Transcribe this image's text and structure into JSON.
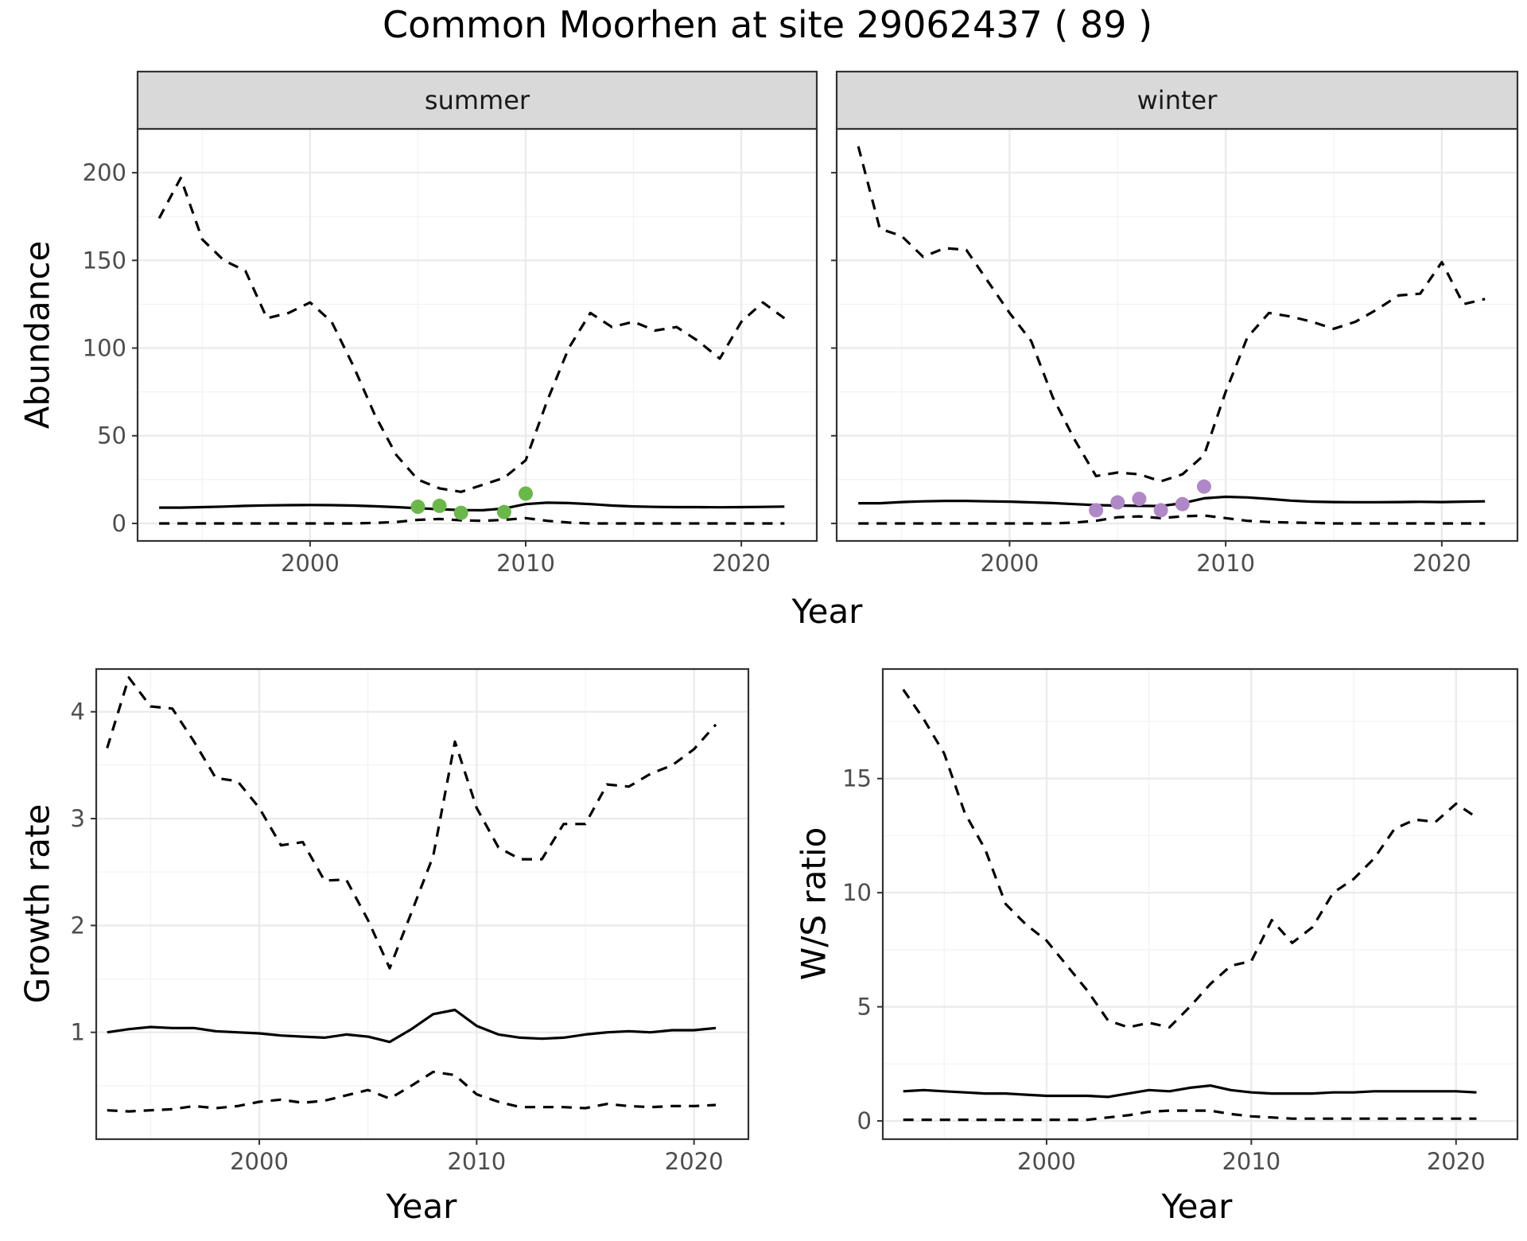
{
  "figure": {
    "title": "Common Moorhen at site 29062437 ( 89 )"
  },
  "chart_data": [
    {
      "type": "line",
      "facet": "summer",
      "xlabel": "Year",
      "ylabel": "Abundance",
      "xlim": [
        1992,
        2023.5
      ],
      "ylim": [
        -10,
        225
      ],
      "xticks": [
        2000,
        2010,
        2020
      ],
      "yticks": [
        0,
        50,
        100,
        150,
        200
      ],
      "grid": true,
      "x": [
        1993,
        1994,
        1995,
        1996,
        1997,
        1998,
        1999,
        2000,
        2001,
        2002,
        2003,
        2004,
        2005,
        2006,
        2007,
        2008,
        2009,
        2010,
        2011,
        2012,
        2013,
        2014,
        2015,
        2016,
        2017,
        2018,
        2019,
        2020,
        2021,
        2022
      ],
      "series": [
        {
          "role": "upper",
          "style": "dashed",
          "values": [
            174,
            197,
            162,
            150,
            144,
            117,
            120,
            126,
            115,
            90,
            62,
            39,
            25,
            20,
            18,
            22,
            26,
            36,
            70,
            100,
            120,
            112,
            115,
            110,
            112,
            104,
            94,
            115,
            126,
            117
          ]
        },
        {
          "role": "estimate",
          "style": "solid",
          "values": [
            9,
            9,
            9.3,
            9.6,
            10,
            10.3,
            10.4,
            10.5,
            10.4,
            10.2,
            9.8,
            9.3,
            8.7,
            8.1,
            7.6,
            7.5,
            8.5,
            11,
            11.8,
            11.6,
            11,
            10.2,
            9.7,
            9.4,
            9.3,
            9.3,
            9.2,
            9.3,
            9.4,
            9.6
          ]
        },
        {
          "role": "lower",
          "style": "dashed",
          "values": [
            0,
            0,
            0,
            0,
            0,
            0,
            0,
            0,
            0,
            0,
            0.3,
            0.8,
            2,
            2.5,
            1.8,
            1.5,
            2,
            3,
            1.5,
            0.5,
            0,
            0,
            0,
            0,
            0,
            0,
            0,
            0,
            0,
            0
          ]
        }
      ],
      "points": {
        "color": "#6ab84a",
        "x": [
          2005,
          2006,
          2007,
          2009,
          2010
        ],
        "y": [
          9.5,
          10,
          6,
          6.5,
          17
        ]
      }
    },
    {
      "type": "line",
      "facet": "winter",
      "xlabel": "Year",
      "ylabel": "",
      "xlim": [
        1992,
        2023.5
      ],
      "ylim": [
        -10,
        225
      ],
      "xticks": [
        2000,
        2010,
        2020
      ],
      "yticks": [
        0,
        50,
        100,
        150,
        200
      ],
      "grid": true,
      "x": [
        1993,
        1994,
        1995,
        1996,
        1997,
        1998,
        1999,
        2000,
        2001,
        2002,
        2003,
        2004,
        2005,
        2006,
        2007,
        2008,
        2009,
        2010,
        2011,
        2012,
        2013,
        2014,
        2015,
        2016,
        2017,
        2018,
        2019,
        2020,
        2021,
        2022
      ],
      "series": [
        {
          "role": "upper",
          "style": "dashed",
          "values": [
            215,
            168,
            164,
            152,
            157,
            156,
            138,
            120,
            104,
            72,
            48,
            27,
            29,
            28,
            24,
            28,
            39,
            75,
            106,
            120,
            118,
            115,
            111,
            115,
            122,
            130,
            131,
            149,
            125,
            128
          ]
        },
        {
          "role": "estimate",
          "style": "solid",
          "values": [
            11.5,
            11.5,
            12.2,
            12.6,
            12.8,
            12.8,
            12.6,
            12.4,
            12,
            11.6,
            11,
            10.4,
            10.2,
            10,
            9.9,
            11.5,
            14.3,
            15.2,
            14.8,
            14,
            13,
            12.4,
            12.2,
            12.1,
            12.1,
            12.2,
            12.3,
            12.2,
            12.4,
            12.6
          ]
        },
        {
          "role": "lower",
          "style": "dashed",
          "values": [
            0,
            0,
            0,
            0,
            0,
            0,
            0,
            0,
            0,
            0,
            0.5,
            1.5,
            3.5,
            4,
            3,
            4,
            4.5,
            3,
            1.5,
            0.8,
            0.5,
            0.3,
            0,
            0,
            0,
            0,
            0,
            0,
            0,
            0
          ]
        }
      ],
      "points": {
        "color": "#b088c8",
        "x": [
          2004,
          2005,
          2006,
          2007,
          2008,
          2009
        ],
        "y": [
          7.5,
          12,
          14,
          7.5,
          11,
          21
        ]
      }
    },
    {
      "type": "line",
      "xlabel": "Year",
      "ylabel": "Growth rate",
      "xlim": [
        1992.5,
        2022.5
      ],
      "ylim": [
        0.0,
        4.4
      ],
      "xticks": [
        2000,
        2010,
        2020
      ],
      "yticks": [
        1,
        2,
        3,
        4
      ],
      "grid": true,
      "x": [
        1993,
        1994,
        1995,
        1996,
        1997,
        1998,
        1999,
        2000,
        2001,
        2002,
        2003,
        2004,
        2005,
        2006,
        2007,
        2008,
        2009,
        2010,
        2011,
        2012,
        2013,
        2014,
        2015,
        2016,
        2017,
        2018,
        2019,
        2020,
        2021
      ],
      "series": [
        {
          "role": "upper",
          "style": "dashed",
          "values": [
            3.66,
            4.32,
            4.05,
            4.03,
            3.72,
            3.38,
            3.35,
            3.1,
            2.75,
            2.78,
            2.42,
            2.43,
            2.05,
            1.6,
            2.12,
            2.65,
            3.72,
            3.1,
            2.73,
            2.62,
            2.62,
            2.95,
            2.95,
            3.32,
            3.3,
            3.42,
            3.5,
            3.65,
            3.88
          ]
        },
        {
          "role": "estimate",
          "style": "solid",
          "values": [
            1.0,
            1.03,
            1.05,
            1.04,
            1.04,
            1.01,
            1.0,
            0.99,
            0.97,
            0.96,
            0.95,
            0.98,
            0.96,
            0.91,
            1.03,
            1.17,
            1.21,
            1.06,
            0.98,
            0.95,
            0.94,
            0.95,
            0.98,
            1.0,
            1.01,
            1.0,
            1.02,
            1.02,
            1.04
          ]
        },
        {
          "role": "lower",
          "style": "dashed",
          "values": [
            0.27,
            0.26,
            0.27,
            0.28,
            0.31,
            0.29,
            0.31,
            0.35,
            0.37,
            0.34,
            0.36,
            0.41,
            0.46,
            0.38,
            0.5,
            0.63,
            0.6,
            0.42,
            0.35,
            0.3,
            0.3,
            0.3,
            0.29,
            0.33,
            0.31,
            0.3,
            0.31,
            0.31,
            0.32
          ]
        }
      ]
    },
    {
      "type": "line",
      "xlabel": "Year",
      "ylabel": "W/S ratio",
      "xlim": [
        1992,
        2023
      ],
      "ylim": [
        -0.8,
        19.8
      ],
      "xticks": [
        2000,
        2010,
        2020
      ],
      "yticks": [
        0,
        5,
        10,
        15
      ],
      "grid": true,
      "x": [
        1993,
        1994,
        1995,
        1996,
        1997,
        1998,
        1999,
        2000,
        2001,
        2002,
        2003,
        2004,
        2005,
        2006,
        2007,
        2008,
        2009,
        2010,
        2011,
        2012,
        2013,
        2014,
        2015,
        2016,
        2017,
        2018,
        2019,
        2020,
        2021
      ],
      "series": [
        {
          "role": "upper",
          "style": "dashed",
          "values": [
            18.9,
            17.6,
            16.1,
            13.5,
            11.9,
            9.5,
            8.6,
            7.9,
            6.8,
            5.7,
            4.4,
            4.1,
            4.3,
            4.1,
            5.0,
            6.0,
            6.8,
            7.0,
            8.8,
            7.8,
            8.5,
            10.0,
            10.6,
            11.5,
            12.8,
            13.2,
            13.1,
            13.9,
            13.3
          ]
        },
        {
          "role": "estimate",
          "style": "solid",
          "values": [
            1.3,
            1.35,
            1.3,
            1.25,
            1.2,
            1.2,
            1.15,
            1.1,
            1.1,
            1.1,
            1.05,
            1.2,
            1.35,
            1.3,
            1.45,
            1.55,
            1.35,
            1.25,
            1.2,
            1.2,
            1.2,
            1.25,
            1.25,
            1.3,
            1.3,
            1.3,
            1.3,
            1.3,
            1.25
          ]
        },
        {
          "role": "lower",
          "style": "dashed",
          "values": [
            0.05,
            0.05,
            0.05,
            0.05,
            0.05,
            0.05,
            0.05,
            0.05,
            0.05,
            0.05,
            0.15,
            0.25,
            0.4,
            0.45,
            0.45,
            0.45,
            0.3,
            0.2,
            0.15,
            0.1,
            0.1,
            0.1,
            0.1,
            0.1,
            0.1,
            0.1,
            0.1,
            0.1,
            0.1
          ]
        }
      ]
    }
  ]
}
